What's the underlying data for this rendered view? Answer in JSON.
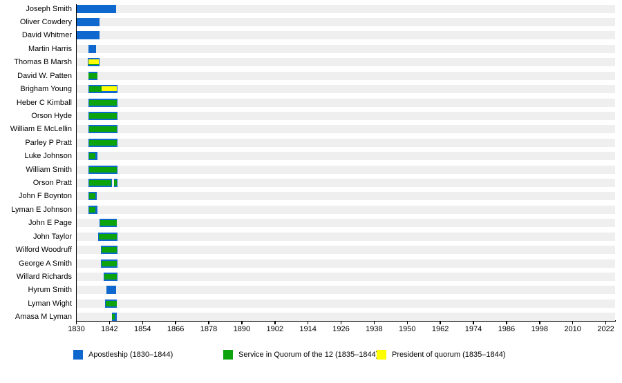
{
  "page": {
    "background": "#ffffff",
    "colors": {
      "track": "#efefef",
      "axis": "#000000",
      "text": "#000000"
    }
  },
  "chart_data": {
    "type": "bar",
    "variant": "gantt-timeline",
    "title": "",
    "xlabel": "",
    "ylabel": "",
    "x_axis": {
      "unit": "year",
      "min": 1830,
      "max": 2025,
      "ticks": [
        1830,
        1842,
        1854,
        1866,
        1878,
        1890,
        1902,
        1914,
        1926,
        1938,
        1950,
        1962,
        1974,
        1986,
        1998,
        2010,
        2022
      ]
    },
    "legend_position": "bottom",
    "legend": [
      {
        "key": "apostleship",
        "label": "Apostleship (1830–1844)",
        "color": "#0f68cd"
      },
      {
        "key": "quorum",
        "label": "Service in Quorum of the 12 (1835–1844)",
        "color": "#0da30d"
      },
      {
        "key": "president",
        "label": "President of quorum (1835–1844)",
        "color": "#ffff00"
      }
    ],
    "people": [
      {
        "name": "Joseph Smith",
        "bars": [
          {
            "apostleship": [
              1830.0,
              1844.4
            ]
          }
        ]
      },
      {
        "name": "Oliver Cowdery",
        "bars": [
          {
            "apostleship": [
              1830.0,
              1838.4
            ]
          }
        ]
      },
      {
        "name": "David Whitmer",
        "bars": [
          {
            "apostleship": [
              1830.0,
              1838.4
            ]
          }
        ]
      },
      {
        "name": "Martin Harris",
        "bars": [
          {
            "apostleship": [
              1834.4,
              1837.2
            ]
          }
        ]
      },
      {
        "name": "Thomas B Marsh",
        "bars": [
          {
            "apostleship": [
              1834.2,
              1838.4
            ],
            "quorum": [
              1834.35,
              1838.25
            ],
            "president": [
              1834.35,
              1838.15
            ]
          }
        ]
      },
      {
        "name": "David W. Patten",
        "bars": [
          {
            "apostleship": [
              1834.3,
              1837.7
            ],
            "quorum": [
              1834.45,
              1837.55
            ]
          }
        ]
      },
      {
        "name": "Brigham Young",
        "bars": [
          {
            "apostleship": [
              1834.5,
              1844.9
            ],
            "quorum": [
              1834.65,
              1839.1
            ],
            "president": [
              1839.1,
              1844.7
            ]
          }
        ]
      },
      {
        "name": "Heber C Kimball",
        "bars": [
          {
            "apostleship": [
              1834.5,
              1844.9
            ],
            "quorum": [
              1834.65,
              1844.7
            ]
          }
        ]
      },
      {
        "name": "Orson Hyde",
        "bars": [
          {
            "apostleship": [
              1834.5,
              1844.9
            ],
            "quorum": [
              1834.65,
              1844.7
            ]
          }
        ]
      },
      {
        "name": "William E McLellin",
        "bars": [
          {
            "apostleship": [
              1834.5,
              1844.9
            ],
            "quorum": [
              1834.65,
              1844.7
            ]
          }
        ]
      },
      {
        "name": "Parley P Pratt",
        "bars": [
          {
            "apostleship": [
              1834.5,
              1844.9
            ],
            "quorum": [
              1834.65,
              1844.7
            ]
          }
        ]
      },
      {
        "name": "Luke Johnson",
        "bars": [
          {
            "apostleship": [
              1834.5,
              1837.7
            ],
            "quorum": [
              1834.65,
              1836.9
            ]
          }
        ]
      },
      {
        "name": "William Smith",
        "bars": [
          {
            "apostleship": [
              1834.5,
              1844.9
            ],
            "quorum": [
              1834.65,
              1844.7
            ]
          }
        ]
      },
      {
        "name": "Orson Pratt",
        "bars": [
          {
            "apostleship": [
              1834.5,
              1842.9
            ],
            "quorum": [
              1834.65,
              1842.75
            ]
          },
          {
            "apostleship": [
              1843.6,
              1844.9
            ],
            "quorum": [
              1843.75,
              1844.7
            ]
          }
        ]
      },
      {
        "name": "John F Boynton",
        "bars": [
          {
            "apostleship": [
              1834.5,
              1837.4
            ],
            "quorum": [
              1834.65,
              1836.8
            ]
          }
        ]
      },
      {
        "name": "Lyman E Johnson",
        "bars": [
          {
            "apostleship": [
              1834.5,
              1837.7
            ],
            "quorum": [
              1834.65,
              1836.9
            ]
          }
        ]
      },
      {
        "name": "John E Page",
        "bars": [
          {
            "apostleship": [
              1838.4,
              1844.7
            ],
            "quorum": [
              1838.55,
              1844.55
            ]
          }
        ]
      },
      {
        "name": "John Taylor",
        "bars": [
          {
            "apostleship": [
              1837.9,
              1844.9
            ],
            "quorum": [
              1838.05,
              1844.7
            ]
          }
        ]
      },
      {
        "name": "Wilford Woodruff",
        "bars": [
          {
            "apostleship": [
              1838.9,
              1844.9
            ],
            "quorum": [
              1839.05,
              1844.7
            ]
          }
        ]
      },
      {
        "name": "George A Smith",
        "bars": [
          {
            "apostleship": [
              1838.9,
              1844.9
            ],
            "quorum": [
              1839.05,
              1844.7
            ]
          }
        ]
      },
      {
        "name": "Willard Richards",
        "bars": [
          {
            "apostleship": [
              1839.9,
              1844.9
            ],
            "quorum": [
              1840.05,
              1844.7
            ]
          }
        ]
      },
      {
        "name": "Hyrum Smith",
        "bars": [
          {
            "apostleship": [
              1840.9,
              1844.4
            ]
          }
        ]
      },
      {
        "name": "Lyman Wight",
        "bars": [
          {
            "apostleship": [
              1840.4,
              1844.7
            ],
            "quorum": [
              1840.55,
              1844.55
            ]
          }
        ]
      },
      {
        "name": "Amasa M Lyman",
        "bars": [
          {
            "apostleship": [
              1842.9,
              1844.7
            ],
            "quorum": [
              1843.0,
              1843.9
            ]
          }
        ]
      }
    ]
  }
}
